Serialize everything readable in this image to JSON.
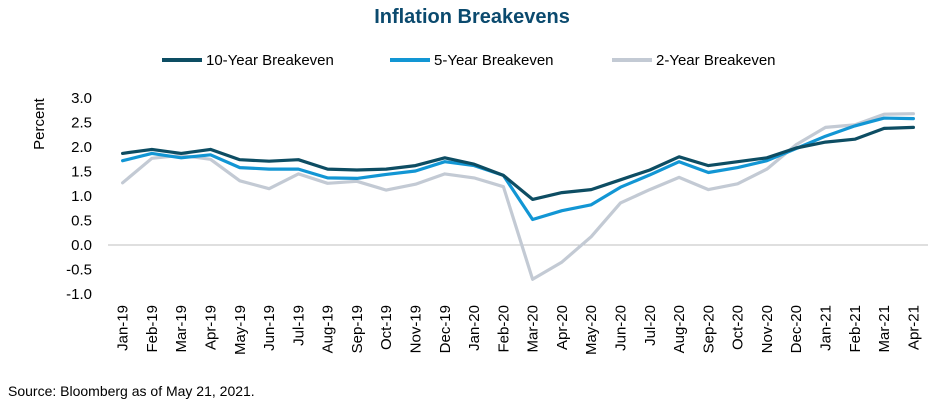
{
  "chart_data": {
    "type": "line",
    "title": "Inflation Breakevens",
    "ylabel": "Percent",
    "xlabel": "",
    "ylim": [
      -1.0,
      3.0
    ],
    "yticks": [
      "3.0",
      "2.5",
      "2.0",
      "1.5",
      "1.0",
      "0.5",
      "0.0",
      "-0.5",
      "-1.0"
    ],
    "ytick_values": [
      3.0,
      2.5,
      2.0,
      1.5,
      1.0,
      0.5,
      0.0,
      -0.5,
      -1.0
    ],
    "grid": false,
    "legend_position": "top",
    "categories": [
      "Jan-19",
      "Feb-19",
      "Mar-19",
      "Apr-19",
      "May-19",
      "Jun-19",
      "Jul-19",
      "Aug-19",
      "Sep-19",
      "Oct-19",
      "Nov-19",
      "Dec-19",
      "Jan-20",
      "Feb-20",
      "Mar-20",
      "Apr-20",
      "May-20",
      "Jun-20",
      "Jul-20",
      "Aug-20",
      "Sep-20",
      "Oct-20",
      "Nov-20",
      "Dec-20",
      "Jan-21",
      "Feb-21",
      "Mar-21",
      "Apr-21"
    ],
    "series": [
      {
        "name": "10-Year Breakeven",
        "color": "#0d4d63",
        "values": [
          1.87,
          1.95,
          1.87,
          1.95,
          1.74,
          1.71,
          1.74,
          1.55,
          1.53,
          1.55,
          1.62,
          1.78,
          1.65,
          1.42,
          0.93,
          1.07,
          1.13,
          1.33,
          1.53,
          1.8,
          1.62,
          1.7,
          1.78,
          1.98,
          2.1,
          2.16,
          2.38,
          2.4
        ]
      },
      {
        "name": "5-Year Breakeven",
        "color": "#1296d4",
        "values": [
          1.72,
          1.87,
          1.78,
          1.84,
          1.58,
          1.55,
          1.55,
          1.37,
          1.36,
          1.44,
          1.51,
          1.7,
          1.62,
          1.42,
          0.52,
          0.7,
          0.82,
          1.18,
          1.43,
          1.7,
          1.48,
          1.58,
          1.72,
          1.97,
          2.22,
          2.43,
          2.59,
          2.58
        ]
      },
      {
        "name": "2-Year Breakeven",
        "color": "#c3cad4",
        "values": [
          1.27,
          1.77,
          1.83,
          1.75,
          1.31,
          1.15,
          1.45,
          1.26,
          1.3,
          1.12,
          1.24,
          1.45,
          1.37,
          1.19,
          -0.7,
          -0.35,
          0.17,
          0.86,
          1.13,
          1.38,
          1.13,
          1.25,
          1.55,
          2.05,
          2.4,
          2.45,
          2.67,
          2.68
        ]
      }
    ]
  },
  "source": "Source: Bloomberg as of May 21, 2021."
}
